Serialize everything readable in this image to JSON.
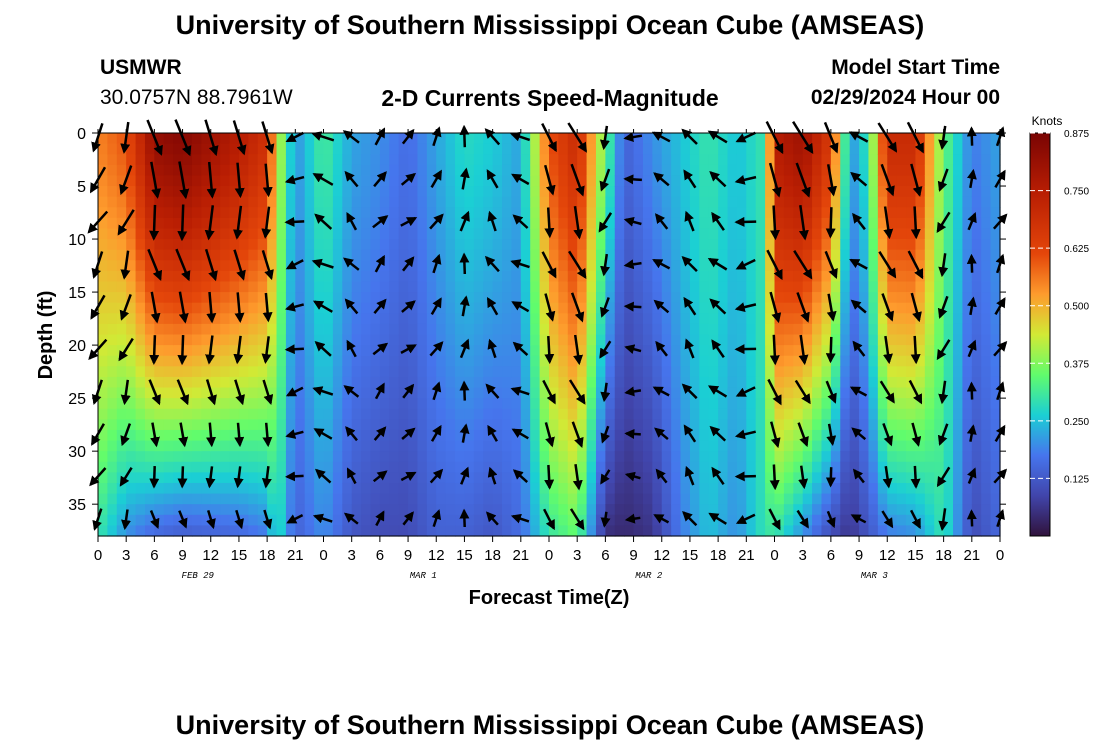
{
  "header": {
    "title": "University of Southern Mississippi Ocean Cube (AMSEAS)",
    "station": "USMWR",
    "coords": "30.0757N  88.7961W",
    "variable": "2-D Currents Speed-Magnitude",
    "model_start_label": "Model Start Time",
    "model_start_value": "02/29/2024 Hour 00",
    "footer_title": "University of Southern Mississippi Ocean Cube (AMSEAS)"
  },
  "chart_data": {
    "type": "heatmap",
    "title": "2-D Currents Speed-Magnitude",
    "xlabel": "Forecast Time(Z)",
    "ylabel": "Depth (ft)",
    "x_range_hours": [
      0,
      96
    ],
    "x_ticks": [
      "0",
      "3",
      "6",
      "9",
      "12",
      "15",
      "18",
      "21",
      "0",
      "3",
      "6",
      "9",
      "12",
      "15",
      "18",
      "21",
      "0",
      "3",
      "6",
      "9",
      "12",
      "15",
      "18",
      "21",
      "0",
      "3",
      "6",
      "9",
      "12",
      "15",
      "18",
      "21",
      "0"
    ],
    "day_labels": [
      "FEB 29",
      "MAR 1",
      "MAR 2",
      "MAR 3"
    ],
    "y_range_ft": [
      0,
      38
    ],
    "y_ticks": [
      "0",
      "5",
      "10",
      "15",
      "20",
      "25",
      "30",
      "35"
    ],
    "colorbar": {
      "unit": "Knots",
      "range": [
        0.0,
        0.875
      ],
      "ticks": [
        "0.875",
        "0.750",
        "0.625",
        "0.500",
        "0.375",
        "0.250",
        "0.125"
      ]
    },
    "vector_rows_ft": [
      0,
      4,
      8,
      12,
      16,
      20,
      24,
      28,
      32,
      36
    ],
    "vector_cols_hours": [
      0,
      3,
      6,
      9,
      12,
      15,
      18,
      21,
      24,
      27,
      30,
      33,
      36,
      39,
      42,
      45,
      48,
      51,
      54,
      57,
      60,
      63,
      66,
      69,
      72,
      75,
      78,
      81,
      84,
      87,
      90,
      93,
      96
    ],
    "columns": [
      {
        "hour": 0,
        "surface": 0.55,
        "bottom": 0.3,
        "dir": 210
      },
      {
        "hour": 3,
        "surface": 0.6,
        "bottom": 0.2,
        "dir": 200
      },
      {
        "hour": 6,
        "surface": 0.82,
        "bottom": 0.15,
        "dir": 170
      },
      {
        "hour": 9,
        "surface": 0.85,
        "bottom": 0.13,
        "dir": 170
      },
      {
        "hour": 12,
        "surface": 0.8,
        "bottom": 0.14,
        "dir": 175
      },
      {
        "hour": 15,
        "surface": 0.75,
        "bottom": 0.15,
        "dir": 175
      },
      {
        "hour": 18,
        "surface": 0.68,
        "bottom": 0.18,
        "dir": 175
      },
      {
        "hour": 19,
        "surface": 0.45,
        "bottom": 0.3,
        "dir": 200
      },
      {
        "hour": 21,
        "surface": 0.2,
        "bottom": 0.14,
        "dir": 255
      },
      {
        "hour": 24,
        "surface": 0.32,
        "bottom": 0.2,
        "dir": 300
      },
      {
        "hour": 27,
        "surface": 0.22,
        "bottom": 0.12,
        "dir": 320
      },
      {
        "hour": 30,
        "surface": 0.2,
        "bottom": 0.1,
        "dir": 40
      },
      {
        "hour": 33,
        "surface": 0.16,
        "bottom": 0.1,
        "dir": 50
      },
      {
        "hour": 36,
        "surface": 0.22,
        "bottom": 0.14,
        "dir": 30
      },
      {
        "hour": 39,
        "surface": 0.28,
        "bottom": 0.14,
        "dir": 10
      },
      {
        "hour": 42,
        "surface": 0.26,
        "bottom": 0.12,
        "dir": 330
      },
      {
        "hour": 45,
        "surface": 0.22,
        "bottom": 0.16,
        "dir": 300
      },
      {
        "hour": 48,
        "surface": 0.6,
        "bottom": 0.3,
        "dir": 165
      },
      {
        "hour": 51,
        "surface": 0.7,
        "bottom": 0.35,
        "dir": 160
      },
      {
        "hour": 54,
        "surface": 0.35,
        "bottom": 0.05,
        "dir": 200
      },
      {
        "hour": 56,
        "surface": 0.14,
        "bottom": 0.04,
        "dir": 260
      },
      {
        "hour": 59,
        "surface": 0.2,
        "bottom": 0.06,
        "dir": 300
      },
      {
        "hour": 62,
        "surface": 0.25,
        "bottom": 0.18,
        "dir": 330
      },
      {
        "hour": 65,
        "surface": 0.3,
        "bottom": 0.25,
        "dir": 320
      },
      {
        "hour": 68,
        "surface": 0.25,
        "bottom": 0.2,
        "dir": 300
      },
      {
        "hour": 71,
        "surface": 0.3,
        "bottom": 0.3,
        "dir": 170
      },
      {
        "hour": 72,
        "surface": 0.75,
        "bottom": 0.3,
        "dir": 165
      },
      {
        "hour": 75,
        "surface": 0.8,
        "bottom": 0.2,
        "dir": 160
      },
      {
        "hour": 78,
        "surface": 0.65,
        "bottom": 0.1,
        "dir": 170
      },
      {
        "hour": 80,
        "surface": 0.2,
        "bottom": 0.06,
        "dir": 300
      },
      {
        "hour": 82,
        "surface": 0.3,
        "bottom": 0.12,
        "dir": 320
      },
      {
        "hour": 84,
        "surface": 0.7,
        "bottom": 0.18,
        "dir": 160
      },
      {
        "hour": 87,
        "surface": 0.7,
        "bottom": 0.2,
        "dir": 165
      },
      {
        "hour": 90,
        "surface": 0.35,
        "bottom": 0.3,
        "dir": 200
      },
      {
        "hour": 93,
        "surface": 0.18,
        "bottom": 0.1,
        "dir": 10
      },
      {
        "hour": 96,
        "surface": 0.22,
        "bottom": 0.15,
        "dir": 30
      }
    ]
  }
}
